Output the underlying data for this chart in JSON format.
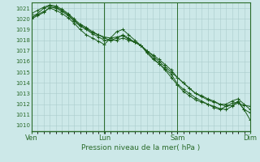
{
  "xlabel": "Pression niveau de la mer( hPa )",
  "ylim": [
    1009.5,
    1021.5
  ],
  "yticks": [
    1010,
    1011,
    1012,
    1013,
    1014,
    1015,
    1016,
    1017,
    1018,
    1019,
    1020,
    1021
  ],
  "background_color": "#cce8e8",
  "grid_color": "#aacccc",
  "line_color": "#1a5c1a",
  "marker_color": "#1a5c1a",
  "axis_color": "#2a6b2a",
  "tick_color": "#2a6b2a",
  "xlabel_color": "#2a6b2a",
  "vlines_x": [
    0.0,
    0.333,
    0.667,
    1.0
  ],
  "xlabels": [
    "Ven",
    "Lun",
    "Sam",
    "Dim"
  ],
  "series": [
    {
      "x": [
        0.0,
        0.028,
        0.056,
        0.084,
        0.111,
        0.139,
        0.167,
        0.194,
        0.222,
        0.25,
        0.278,
        0.306,
        0.333,
        0.361,
        0.389,
        0.417,
        0.444,
        0.472,
        0.5,
        0.528,
        0.556,
        0.583,
        0.611,
        0.639,
        0.667,
        0.694,
        0.722,
        0.75,
        0.778,
        0.806,
        0.833,
        0.861,
        0.889,
        0.917,
        0.944,
        0.972,
        1.0
      ],
      "y": [
        1020.2,
        1020.5,
        1021.0,
        1021.2,
        1021.1,
        1020.8,
        1020.4,
        1019.9,
        1019.4,
        1019.1,
        1018.7,
        1018.5,
        1018.3,
        1018.2,
        1018.3,
        1018.4,
        1018.1,
        1017.8,
        1017.5,
        1017.0,
        1016.5,
        1016.0,
        1015.5,
        1015.0,
        1014.5,
        1014.0,
        1013.5,
        1013.0,
        1012.8,
        1012.5,
        1012.3,
        1012.0,
        1011.8,
        1011.9,
        1012.1,
        1011.9,
        1011.8
      ]
    },
    {
      "x": [
        0.0,
        0.028,
        0.056,
        0.084,
        0.111,
        0.139,
        0.167,
        0.194,
        0.222,
        0.25,
        0.278,
        0.306,
        0.333,
        0.361,
        0.389,
        0.417,
        0.444,
        0.472,
        0.5,
        0.528,
        0.556,
        0.583,
        0.611,
        0.639,
        0.667,
        0.694,
        0.722,
        0.75,
        0.778,
        0.806,
        0.833,
        0.861,
        0.889,
        0.917,
        0.944,
        0.972,
        1.0
      ],
      "y": [
        1020.0,
        1020.3,
        1020.6,
        1021.1,
        1021.0,
        1020.7,
        1020.3,
        1019.8,
        1019.3,
        1019.0,
        1018.6,
        1018.3,
        1018.0,
        1018.0,
        1018.2,
        1018.5,
        1018.2,
        1017.8,
        1017.5,
        1016.8,
        1016.2,
        1015.8,
        1015.3,
        1014.8,
        1013.9,
        1013.4,
        1013.0,
        1012.6,
        1012.3,
        1012.0,
        1011.7,
        1011.5,
        1011.8,
        1012.1,
        1012.2,
        1011.5,
        1010.5
      ]
    },
    {
      "x": [
        0.0,
        0.028,
        0.056,
        0.084,
        0.111,
        0.139,
        0.167,
        0.194,
        0.222,
        0.25,
        0.278,
        0.306,
        0.333,
        0.361,
        0.389,
        0.417,
        0.444,
        0.472,
        0.5,
        0.528,
        0.556,
        0.583,
        0.611,
        0.639,
        0.667,
        0.694,
        0.722,
        0.75,
        0.778,
        0.806,
        0.833,
        0.861,
        0.889,
        0.917,
        0.944,
        0.972,
        1.0
      ],
      "y": [
        1020.5,
        1020.8,
        1021.1,
        1021.3,
        1021.2,
        1020.9,
        1020.5,
        1020.0,
        1019.5,
        1019.2,
        1018.8,
        1018.5,
        1018.2,
        1018.0,
        1018.0,
        1018.2,
        1018.0,
        1017.8,
        1017.5,
        1017.0,
        1016.6,
        1016.2,
        1015.7,
        1015.2,
        1014.5,
        1014.0,
        1013.5,
        1013.0,
        1012.7,
        1012.4,
        1012.2,
        1012.0,
        1012.0,
        1012.3,
        1012.5,
        1012.0,
        1011.5
      ]
    },
    {
      "x": [
        0.0,
        0.028,
        0.056,
        0.084,
        0.111,
        0.139,
        0.167,
        0.194,
        0.222,
        0.25,
        0.278,
        0.306,
        0.333,
        0.361,
        0.389,
        0.417,
        0.444,
        0.472,
        0.5,
        0.528,
        0.556,
        0.583,
        0.611,
        0.639,
        0.667,
        0.694,
        0.722,
        0.75,
        0.778,
        0.806,
        0.833,
        0.861,
        0.889,
        0.917,
        0.944,
        0.972,
        1.0
      ],
      "y": [
        1020.1,
        1020.4,
        1020.7,
        1021.0,
        1020.8,
        1020.5,
        1020.1,
        1019.6,
        1019.0,
        1018.5,
        1018.2,
        1017.9,
        1017.6,
        1018.2,
        1018.8,
        1019.0,
        1018.5,
        1018.0,
        1017.5,
        1016.9,
        1016.3,
        1015.8,
        1015.2,
        1014.5,
        1013.8,
        1013.2,
        1012.8,
        1012.4,
        1012.2,
        1012.0,
        1011.8,
        1011.6,
        1011.5,
        1011.8,
        1012.3,
        1011.5,
        1011.2
      ]
    }
  ]
}
